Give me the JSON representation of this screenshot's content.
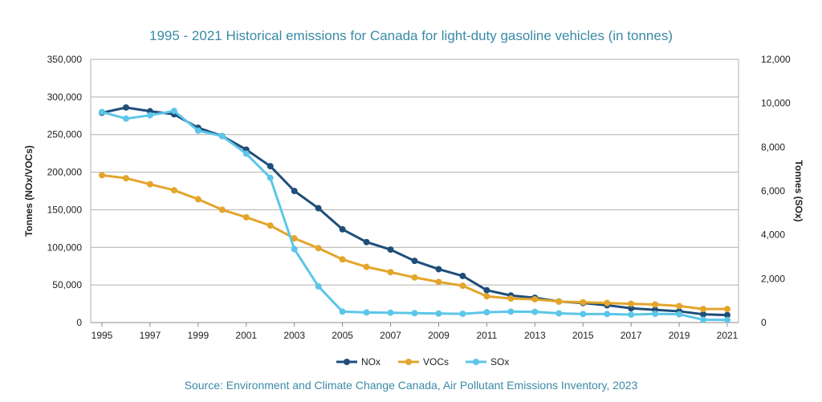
{
  "chart_data": {
    "type": "line",
    "title": "1995 - 2021 Historical emissions for Canada for light-duty gasoline vehicles (in tonnes)",
    "source": "Source:  Environment and Climate Change Canada, Air Pollutant Emissions Inventory, 2023",
    "ylabel_left": "Tonnes (NOx/VOCs)",
    "ylabel_right": "Tonnes (SOx)",
    "ylim_left": [
      0,
      350000
    ],
    "ylim_right": [
      0,
      12000
    ],
    "yticks_left": [
      "0",
      "50,000",
      "100,000",
      "150,000",
      "200,000",
      "250,000",
      "300,000",
      "350,000"
    ],
    "yticks_right": [
      "0",
      "2,000",
      "4,000",
      "6,000",
      "8,000",
      "10,000",
      "12,000"
    ],
    "xticks": [
      "1995",
      "1997",
      "1999",
      "2001",
      "2003",
      "2005",
      "2007",
      "2009",
      "2011",
      "2013",
      "2015",
      "2017",
      "2019",
      "2021"
    ],
    "grid": true,
    "legend_position": "bottom",
    "x": [
      1995,
      1996,
      1997,
      1998,
      1999,
      2000,
      2001,
      2002,
      2003,
      2004,
      2005,
      2006,
      2007,
      2008,
      2009,
      2010,
      2011,
      2012,
      2013,
      2014,
      2015,
      2016,
      2017,
      2018,
      2019,
      2020,
      2021
    ],
    "series": [
      {
        "name": "NOx",
        "axis": "left",
        "color": "#1f4e79",
        "values": [
          279000,
          286000,
          281000,
          277000,
          259000,
          248000,
          230000,
          208000,
          175000,
          152000,
          124000,
          107000,
          97000,
          82000,
          71000,
          62000,
          43000,
          36000,
          33000,
          28000,
          26000,
          23000,
          19000,
          17000,
          15000,
          11000,
          10000
        ]
      },
      {
        "name": "VOCs",
        "axis": "left",
        "color": "#e3a52b",
        "values": [
          196000,
          192000,
          184000,
          176000,
          164000,
          150000,
          140000,
          129000,
          112000,
          99000,
          84000,
          74000,
          67000,
          60000,
          54000,
          49000,
          35000,
          32000,
          31000,
          28000,
          27000,
          26000,
          25000,
          24000,
          22000,
          18000,
          18000
        ]
      },
      {
        "name": "SOx",
        "axis": "right",
        "color": "#5cc6e8",
        "values": [
          9600,
          9300,
          9450,
          9650,
          8750,
          8500,
          7700,
          6600,
          3350,
          1650,
          500,
          460,
          450,
          430,
          410,
          400,
          470,
          500,
          490,
          420,
          390,
          390,
          360,
          400,
          380,
          130,
          120
        ]
      }
    ]
  }
}
